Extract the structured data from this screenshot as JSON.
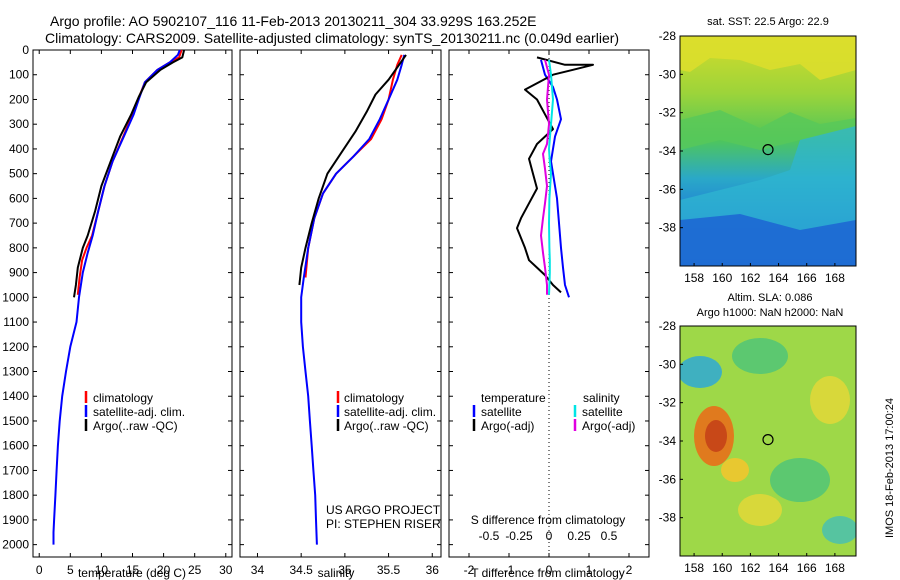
{
  "header": {
    "line1": "Argo profile: AO 5902107_116 11-Feb-2013 20130211_304 33.929S 163.252E",
    "line2": "Climatology: CARS2009. Satellite-adjusted climatology: synTS_20130211.nc (0.049d earlier)"
  },
  "colors": {
    "climatology": "#ff0000",
    "satellite": "#0000ff",
    "argo": "#000000",
    "sal_satellite": "#00e5e5",
    "sal_argo": "#e000e0"
  },
  "chart_data": [
    {
      "id": "temperature",
      "type": "line",
      "xlabel": "temperature (deg C)",
      "ylabel": "",
      "xlim": [
        -1,
        31
      ],
      "ylim": [
        2050,
        0
      ],
      "xticks": [
        0,
        5,
        10,
        15,
        20,
        25,
        30
      ],
      "yticks": [
        0,
        100,
        200,
        300,
        400,
        500,
        600,
        700,
        800,
        900,
        1000,
        1100,
        1200,
        1300,
        1400,
        1500,
        1600,
        1700,
        1800,
        1900,
        2000
      ],
      "legend": [
        "climatology",
        "satellite-adj. clim.",
        "Argo(..raw -QC)"
      ],
      "series": [
        {
          "name": "climatology",
          "color": "#ff0000",
          "x": [
            22.9,
            22.5,
            21.0,
            19.0,
            17.0,
            15.9,
            15.0,
            13.5,
            11.8,
            10.5,
            9.5,
            8.5,
            7.6,
            6.9,
            6.5,
            6.2
          ],
          "y": [
            0,
            30,
            50,
            80,
            130,
            200,
            260,
            350,
            450,
            550,
            650,
            750,
            800,
            850,
            920,
            990
          ]
        },
        {
          "name": "satellite-adj. clim.",
          "color": "#0000ff",
          "x": [
            22.6,
            22.3,
            21.0,
            19.0,
            17.0,
            16.0,
            15.2,
            13.6,
            11.8,
            10.5,
            9.5,
            8.6,
            7.8,
            7.0,
            6.4,
            6.0,
            5.0,
            4.3,
            3.7,
            3.3,
            3.0,
            2.8,
            2.6,
            2.4,
            2.3,
            2.3
          ],
          "y": [
            0,
            20,
            50,
            80,
            130,
            200,
            260,
            350,
            450,
            550,
            650,
            750,
            820,
            900,
            1000,
            1100,
            1200,
            1300,
            1400,
            1500,
            1600,
            1700,
            1800,
            1900,
            1950,
            2000
          ]
        },
        {
          "name": "Argo(..raw -QC)",
          "color": "#000000",
          "x": [
            23.3,
            23.0,
            21.5,
            19.5,
            17.2,
            16.0,
            14.8,
            13.0,
            11.5,
            10.0,
            9.0,
            7.8,
            7.0,
            6.2,
            5.9,
            5.6
          ],
          "y": [
            0,
            30,
            50,
            80,
            130,
            190,
            260,
            350,
            450,
            550,
            650,
            750,
            800,
            880,
            950,
            1000
          ]
        }
      ]
    },
    {
      "id": "salinity",
      "type": "line",
      "xlabel": "salinity",
      "xlim": [
        33.8,
        36.1
      ],
      "ylim": [
        2050,
        0
      ],
      "xticks": [
        34,
        34.5,
        35,
        35.5,
        36
      ],
      "legend": [
        "climatology",
        "satellite-adj. clim.",
        "Argo(..raw -QC)"
      ],
      "annotation": [
        "US ARGO PROJECT",
        "PI: STEPHEN RISER"
      ],
      "series": [
        {
          "name": "climatology",
          "color": "#ff0000",
          "x": [
            35.65,
            35.6,
            35.55,
            35.5,
            35.42,
            35.3,
            35.1,
            34.9,
            34.75,
            34.65,
            34.58,
            34.55
          ],
          "y": [
            20,
            60,
            120,
            200,
            280,
            360,
            430,
            500,
            580,
            680,
            800,
            920
          ]
        },
        {
          "name": "satellite-adj. clim.",
          "color": "#0000ff",
          "x": [
            35.68,
            35.65,
            35.6,
            35.5,
            35.4,
            35.28,
            35.1,
            34.9,
            34.75,
            34.65,
            34.58,
            34.53,
            34.5,
            34.5,
            34.52,
            34.55,
            34.58,
            34.6,
            34.62,
            34.64,
            34.66,
            34.67,
            34.68
          ],
          "y": [
            20,
            60,
            120,
            200,
            280,
            360,
            430,
            500,
            580,
            680,
            800,
            920,
            1000,
            1100,
            1200,
            1300,
            1400,
            1500,
            1600,
            1700,
            1800,
            1900,
            2000
          ]
        },
        {
          "name": "Argo(..raw -QC)",
          "color": "#000000",
          "x": [
            35.7,
            35.62,
            35.5,
            35.35,
            35.25,
            35.12,
            34.95,
            34.8,
            34.7,
            34.62,
            34.55,
            34.5,
            34.48
          ],
          "y": [
            20,
            60,
            120,
            180,
            250,
            330,
            420,
            500,
            600,
            700,
            800,
            880,
            950
          ]
        }
      ]
    },
    {
      "id": "differences",
      "type": "line",
      "xlabel": "T difference from climatology",
      "top_xlabel": "S difference from climatology",
      "xlim": [
        -2.5,
        2.5
      ],
      "ylim": [
        2050,
        0
      ],
      "xticks": [
        -2,
        -1,
        0,
        1,
        2
      ],
      "top_xticks": [
        -0.5,
        -0.25,
        0,
        0.25,
        0.5
      ],
      "legend_left_title": "temperature",
      "legend_right_title": "salinity",
      "legend_left": [
        "satellite",
        "Argo(-adj)"
      ],
      "legend_right": [
        "satellite",
        "Argo(-adj)"
      ],
      "series": [
        {
          "name": "temperature satellite",
          "color": "#0000ff",
          "x": [
            -0.2,
            -0.1,
            0.1,
            0.2,
            0.3,
            0.15,
            0.1,
            0.05,
            0.1,
            0.15,
            0.2,
            0.25,
            0.3,
            0.35,
            0.4,
            0.5
          ],
          "y": [
            40,
            100,
            150,
            200,
            280,
            350,
            400,
            450,
            500,
            550,
            600,
            700,
            800,
            880,
            950,
            1000
          ]
        },
        {
          "name": "temperature Argo(-adj)",
          "color": "#000000",
          "x": [
            -0.3,
            0.4,
            1.1,
            0.6,
            0.1,
            -0.6,
            -0.3,
            -0.1,
            0.1,
            -0.3,
            -0.5,
            -0.4,
            -0.3,
            -0.5,
            -0.7,
            -0.8,
            -0.7,
            -0.6,
            -0.5,
            -0.3,
            -0.1,
            0.0,
            0.1,
            0.3
          ],
          "y": [
            30,
            60,
            60,
            80,
            100,
            160,
            200,
            260,
            320,
            380,
            440,
            500,
            560,
            620,
            680,
            720,
            760,
            800,
            850,
            880,
            910,
            930,
            950,
            980
          ]
        },
        {
          "name": "salinity satellite",
          "color": "#00e5e5",
          "x": [
            0.0,
            0.05,
            0.1,
            0.05,
            0.0,
            0.02,
            0.05,
            0.03,
            0.01,
            0.0,
            0.01,
            0.02,
            0.02,
            0.01,
            0.0
          ],
          "y": [
            40,
            100,
            200,
            300,
            400,
            450,
            500,
            550,
            600,
            700,
            800,
            850,
            900,
            950,
            990
          ]
        },
        {
          "name": "salinity Argo(-adj)",
          "color": "#e000e0",
          "x": [
            -0.1,
            0.0,
            -0.05,
            0.0,
            -0.05,
            -0.15,
            -0.1,
            -0.05,
            -0.1,
            -0.15,
            -0.2,
            -0.15,
            -0.1,
            -0.05,
            -0.05
          ],
          "y": [
            40,
            100,
            200,
            300,
            380,
            420,
            480,
            550,
            620,
            680,
            750,
            820,
            880,
            950,
            990
          ]
        }
      ]
    },
    {
      "id": "sst_map",
      "type": "heatmap",
      "title": "sat. SST: 22.5  Argo: 22.9",
      "xlim": [
        157,
        169.5
      ],
      "ylim": [
        -40,
        -28
      ],
      "xticks": [
        158,
        160,
        162,
        164,
        166,
        168
      ],
      "yticks": [
        -28,
        -30,
        -32,
        -34,
        -36,
        -38
      ],
      "marker": {
        "lon": 163.252,
        "lat": -33.929
      }
    },
    {
      "id": "sla_map",
      "type": "heatmap",
      "title_line1": "Altim. SLA: 0.086",
      "title_line2": "Argo h1000: NaN h2000: NaN",
      "xlim": [
        157,
        169.5
      ],
      "ylim": [
        -40,
        -28
      ],
      "xticks": [
        158,
        160,
        162,
        164,
        166,
        168
      ],
      "yticks": [
        -28,
        -30,
        -32,
        -34,
        -36,
        -38
      ],
      "marker": {
        "lon": 163.252,
        "lat": -33.929
      }
    }
  ],
  "legend_labels": {
    "climatology": "climatology",
    "satellite": "satellite-adj. clim.",
    "argo": "Argo(..raw -QC)"
  },
  "footer_stamp": "IMOS 18-Feb-2013 17:00:24"
}
